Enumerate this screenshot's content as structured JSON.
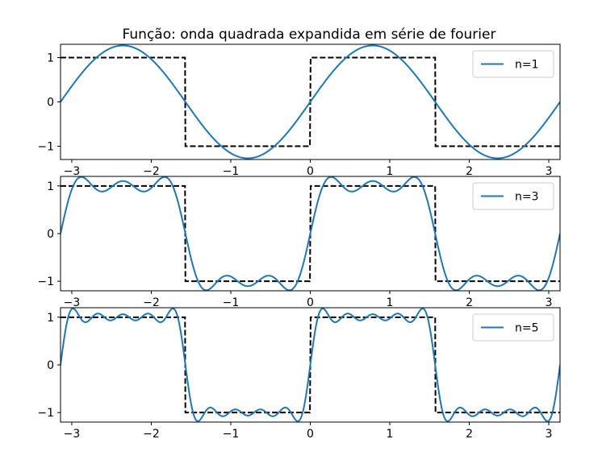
{
  "figure": {
    "title": "Função: onda quadrada expandida em série de fourier"
  },
  "colors": {
    "series": "#1f77b4",
    "target": "#000000"
  },
  "chart_data": [
    {
      "type": "line",
      "title": "Função: onda quadrada expandida em série de fourier",
      "xlim": [
        -3.14159,
        3.14159
      ],
      "ylim": [
        -1.3,
        1.3
      ],
      "xticks": [
        -3,
        -2,
        -1,
        0,
        1,
        2,
        3
      ],
      "xtick_labels": [
        "−3",
        "−2",
        "−1",
        "0",
        "1",
        "2",
        "3"
      ],
      "yticks": [
        1,
        0,
        -1
      ],
      "ytick_labels": [
        "1",
        "0",
        "−1"
      ],
      "legend": "top-right",
      "series": [
        {
          "name": "n=1",
          "terms": 1,
          "style": "solid",
          "color": "#1f77b4"
        },
        {
          "style": "dashed",
          "color": "#000000",
          "function": "square wave, period π, amplitude 1"
        }
      ]
    },
    {
      "type": "line",
      "title": "",
      "xlim": [
        -3.14159,
        3.14159
      ],
      "ylim": [
        -1.2,
        1.2
      ],
      "xticks": [
        -3,
        -2,
        -1,
        0,
        1,
        2,
        3
      ],
      "xtick_labels": [
        "−3",
        "−2",
        "−1",
        "0",
        "1",
        "2",
        "3"
      ],
      "yticks": [
        1,
        0,
        -1
      ],
      "ytick_labels": [
        "1",
        "0",
        "−1"
      ],
      "legend": "top-right",
      "series": [
        {
          "name": "n=3",
          "terms": 3,
          "style": "solid",
          "color": "#1f77b4"
        },
        {
          "style": "dashed",
          "color": "#000000",
          "function": "square wave, period π, amplitude 1"
        }
      ]
    },
    {
      "type": "line",
      "title": "",
      "xlim": [
        -3.14159,
        3.14159
      ],
      "ylim": [
        -1.2,
        1.2
      ],
      "xticks": [
        -3,
        -2,
        -1,
        0,
        1,
        2,
        3
      ],
      "xtick_labels": [
        "−3",
        "−2",
        "−1",
        "0",
        "1",
        "2",
        "3"
      ],
      "yticks": [
        1,
        0,
        -1
      ],
      "ytick_labels": [
        "1",
        "0",
        "−1"
      ],
      "legend": "top-right",
      "series": [
        {
          "name": "n=5",
          "terms": 5,
          "style": "solid",
          "color": "#1f77b4"
        },
        {
          "style": "dashed",
          "color": "#000000",
          "function": "square wave, period π, amplitude 1"
        }
      ]
    }
  ]
}
